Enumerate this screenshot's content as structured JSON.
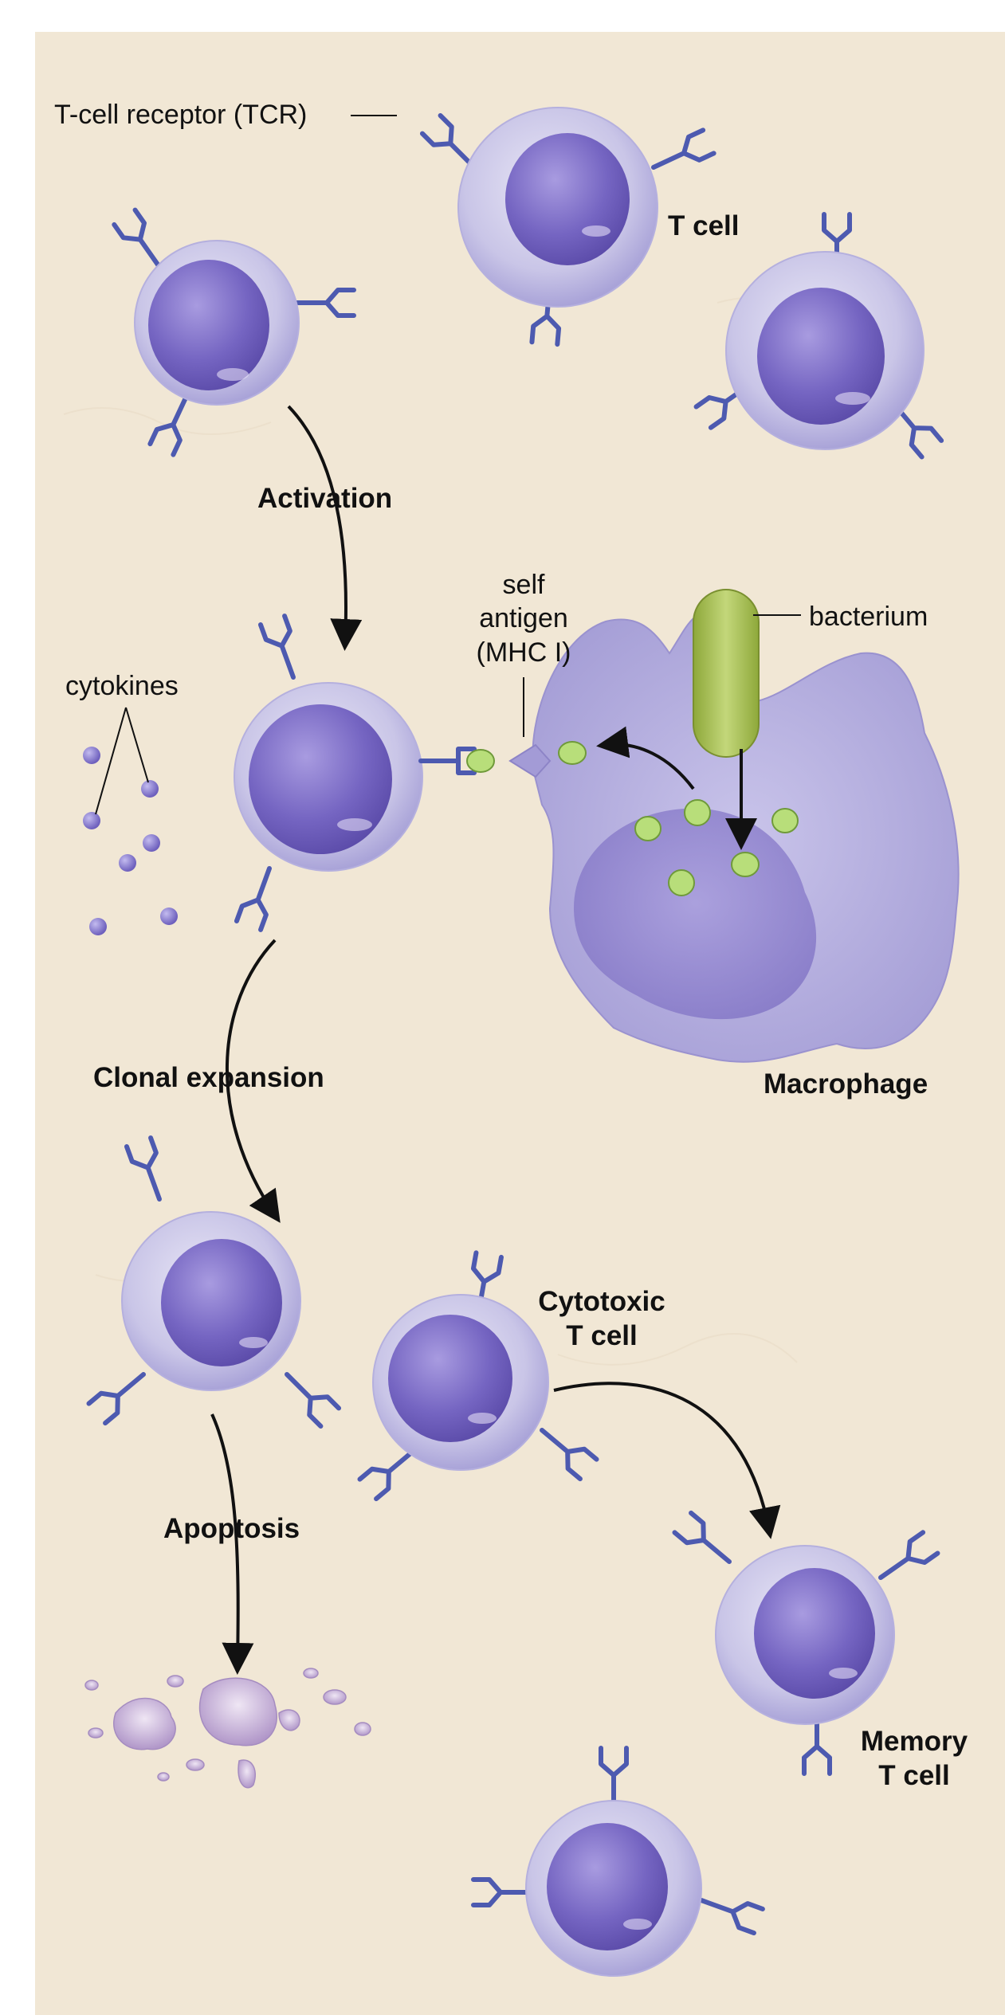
{
  "labels": {
    "tcr": "T-cell receptor (TCR)",
    "t_cell": "T cell",
    "activation": "Activation",
    "self_antigen_line1": "self",
    "self_antigen_line2": "antigen",
    "self_antigen_line3": "(MHC I)",
    "bacterium": "bacterium",
    "cytokines": "cytokines",
    "clonal_expansion": "Clonal expansion",
    "macrophage": "Macrophage",
    "cytotoxic_line1": "Cytotoxic",
    "cytotoxic_line2": "T cell",
    "apoptosis": "Apoptosis",
    "memory_line1": "Memory",
    "memory_line2": "T cell"
  },
  "colors": {
    "background": "#f1e7d5",
    "cell_membrane": "#d4d1ea",
    "cell_nucleus": "#7a6bc4",
    "receptor": "#4d5ab0",
    "macrophage": "#b4aede",
    "bacterium": "#a7bf55",
    "antigen": "#b8de7a",
    "arrow": "#111111"
  }
}
